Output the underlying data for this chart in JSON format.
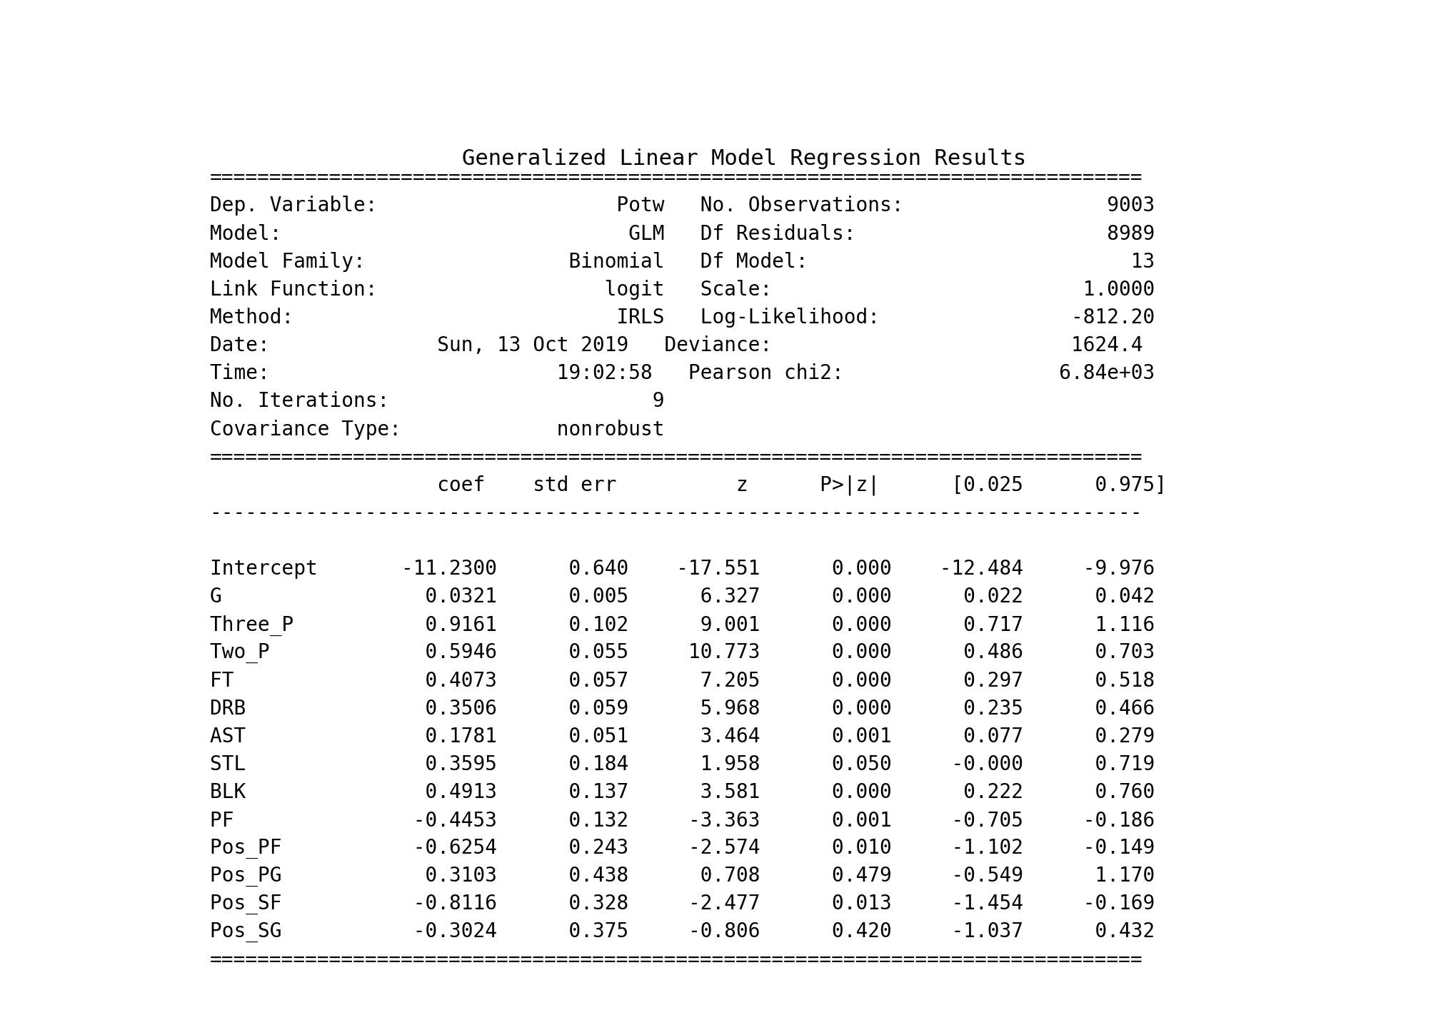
{
  "title": "Generalized Linear Model Regression Results",
  "background_color": "#ffffff",
  "text_color": "#000000",
  "font_family": "DejaVu Sans Mono",
  "title_fontsize": 22,
  "body_fontsize": 20,
  "lines": [
    "Dep. Variable:                    Potw   No. Observations:                 9003",
    "Model:                             GLM   Df Residuals:                     8989",
    "Model Family:                 Binomial   Df Model:                           13",
    "Link Function:                   logit   Scale:                          1.0000",
    "Method:                           IRLS   Log-Likelihood:                -812.20",
    "Date:              Sun, 13 Oct 2019   Deviance:                         1624.4",
    "Time:                        19:02:58   Pearson chi2:                  6.84e+03",
    "No. Iterations:                      9",
    "Covariance Type:             nonrobust"
  ],
  "col_header": "                   coef    std err          z      P>|z|      [0.025      0.975]",
  "data_rows": [
    "Intercept       -11.2300      0.640    -17.551      0.000    -12.484     -9.976",
    "G                 0.0321      0.005      6.327      0.000      0.022      0.042",
    "Three_P           0.9161      0.102      9.001      0.000      0.717      1.116",
    "Two_P             0.5946      0.055     10.773      0.000      0.486      0.703",
    "FT                0.4073      0.057      7.205      0.000      0.297      0.518",
    "DRB               0.3506      0.059      5.968      0.000      0.235      0.466",
    "AST               0.1781      0.051      3.464      0.001      0.077      0.279",
    "STL               0.3595      0.184      1.958      0.050     -0.000      0.719",
    "BLK               0.4913      0.137      3.581      0.000      0.222      0.760",
    "PF               -0.4453      0.132     -3.363      0.001     -0.705     -0.186",
    "Pos_PF           -0.6254      0.243     -2.574      0.010     -1.102     -0.149",
    "Pos_PG            0.3103      0.438      0.708      0.479     -0.549      1.170",
    "Pos_SF           -0.8116      0.328     -2.477      0.013     -1.454     -0.169",
    "Pos_SG           -0.3024      0.375     -0.806      0.420     -1.037      0.432"
  ],
  "eq_char": "=",
  "dash_char": "-",
  "line_width": 78
}
